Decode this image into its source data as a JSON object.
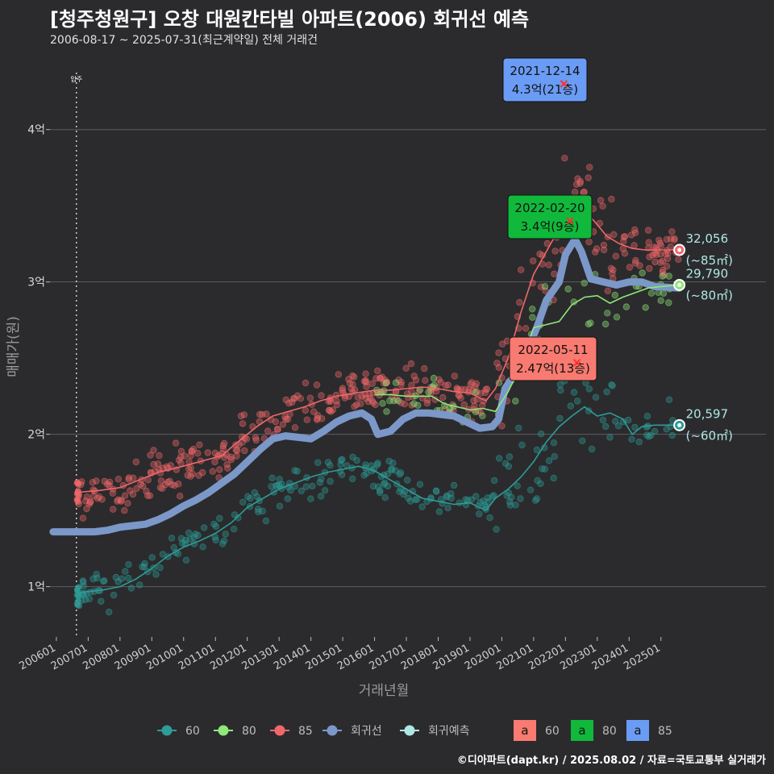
{
  "header": {
    "title": "[청주청원구] 오창 대원칸타빌 아파트(2006) 회귀선 예측",
    "subtitle": "2006-08-17 ~ 2025-07-31(최근계약일) 전체 거래건"
  },
  "footer": {
    "credit": "©디아파트(dapt.kr) / 2025.08.02 / 자료=국토교통부 실거래가"
  },
  "colors": {
    "s60": "#2e9c97",
    "s80": "#8fe87a",
    "s85": "#f0676a",
    "regression": "#7b98c9",
    "forecast": "#aee8e5",
    "label80_bg": "#10b93b",
    "label85_bg": "#6a9cf5",
    "label60_bg": "#f87a70",
    "background": "#2b2b2d",
    "grid": "#5d5d60"
  },
  "chart_data": {
    "type": "scatter",
    "xlabel": "거래년월",
    "ylabel": "매매가(원)",
    "x_ticks": [
      "200601",
      "200701",
      "200801",
      "200901",
      "201001",
      "201101",
      "201201",
      "201301",
      "201401",
      "201501",
      "201601",
      "201701",
      "201801",
      "201901",
      "202001",
      "202101",
      "202201",
      "202301",
      "202401",
      "202501"
    ],
    "y_ticks": [
      {
        "value": 1,
        "label": "1억"
      },
      {
        "value": 2,
        "label": "2억"
      },
      {
        "value": 3,
        "label": "3억"
      },
      {
        "value": 4,
        "label": "4억"
      }
    ],
    "xlim": [
      2005.8,
      2028.3
    ],
    "ylim": [
      0.67,
      4.48
    ],
    "vline": {
      "x": 2006.63,
      "label": "입주"
    },
    "series": [
      {
        "name": "60",
        "color_key": "s60",
        "line": [
          [
            2006.7,
            0.96
          ],
          [
            2007.5,
            0.98
          ],
          [
            2008.0,
            1.0
          ],
          [
            2008.5,
            1.05
          ],
          [
            2009.0,
            1.12
          ],
          [
            2009.5,
            1.2
          ],
          [
            2010.0,
            1.26
          ],
          [
            2010.5,
            1.3
          ],
          [
            2011.0,
            1.35
          ],
          [
            2011.5,
            1.42
          ],
          [
            2012.0,
            1.52
          ],
          [
            2012.5,
            1.58
          ],
          [
            2013.0,
            1.64
          ],
          [
            2013.5,
            1.68
          ],
          [
            2014.0,
            1.72
          ],
          [
            2014.5,
            1.75
          ],
          [
            2015.0,
            1.77
          ],
          [
            2015.5,
            1.79
          ],
          [
            2016.0,
            1.76
          ],
          [
            2016.5,
            1.7
          ],
          [
            2017.0,
            1.64
          ],
          [
            2017.5,
            1.58
          ],
          [
            2018.0,
            1.56
          ],
          [
            2018.5,
            1.54
          ],
          [
            2019.0,
            1.55
          ],
          [
            2019.5,
            1.5
          ],
          [
            2019.8,
            1.58
          ],
          [
            2020.2,
            1.64
          ],
          [
            2020.6,
            1.72
          ],
          [
            2021.0,
            1.82
          ],
          [
            2021.4,
            1.95
          ],
          [
            2021.8,
            2.05
          ],
          [
            2022.2,
            2.12
          ],
          [
            2022.6,
            2.18
          ],
          [
            2023.0,
            2.12
          ],
          [
            2023.4,
            2.14
          ],
          [
            2023.8,
            2.1
          ],
          [
            2024.1,
            2.0
          ],
          [
            2024.4,
            2.05
          ],
          [
            2024.8,
            2.06
          ],
          [
            2025.58,
            2.06
          ]
        ]
      },
      {
        "name": "80",
        "color_key": "s80",
        "line": [
          [
            2016.0,
            2.26
          ],
          [
            2016.5,
            2.26
          ],
          [
            2017.0,
            2.25
          ],
          [
            2017.4,
            2.25
          ],
          [
            2017.8,
            2.25
          ],
          [
            2018.2,
            2.2
          ],
          [
            2018.6,
            2.18
          ],
          [
            2019.0,
            2.16
          ],
          [
            2019.4,
            2.17
          ],
          [
            2019.8,
            2.15
          ],
          [
            2020.2,
            2.28
          ],
          [
            2020.6,
            2.45
          ],
          [
            2021.0,
            2.7
          ],
          [
            2021.4,
            2.72
          ],
          [
            2021.8,
            2.74
          ],
          [
            2022.2,
            2.85
          ],
          [
            2022.6,
            2.9
          ],
          [
            2023.0,
            2.91
          ],
          [
            2023.4,
            2.86
          ],
          [
            2023.8,
            2.9
          ],
          [
            2024.2,
            2.93
          ],
          [
            2024.6,
            2.96
          ],
          [
            2025.0,
            2.97
          ],
          [
            2025.58,
            2.98
          ]
        ]
      },
      {
        "name": "85",
        "color_key": "s85",
        "line": [
          [
            2006.7,
            1.62
          ],
          [
            2007.3,
            1.63
          ],
          [
            2008.0,
            1.65
          ],
          [
            2008.6,
            1.7
          ],
          [
            2009.2,
            1.75
          ],
          [
            2009.8,
            1.78
          ],
          [
            2010.5,
            1.82
          ],
          [
            2011.2,
            1.86
          ],
          [
            2011.7,
            1.95
          ],
          [
            2012.3,
            2.05
          ],
          [
            2012.8,
            2.12
          ],
          [
            2013.3,
            2.15
          ],
          [
            2013.8,
            2.18
          ],
          [
            2014.3,
            2.22
          ],
          [
            2014.8,
            2.25
          ],
          [
            2015.4,
            2.27
          ],
          [
            2016.0,
            2.29
          ],
          [
            2016.5,
            2.29
          ],
          [
            2017.0,
            2.3
          ],
          [
            2017.5,
            2.31
          ],
          [
            2018.0,
            2.3
          ],
          [
            2018.5,
            2.28
          ],
          [
            2019.0,
            2.27
          ],
          [
            2019.5,
            2.22
          ],
          [
            2019.8,
            2.3
          ],
          [
            2020.2,
            2.5
          ],
          [
            2020.6,
            2.8
          ],
          [
            2021.0,
            3.05
          ],
          [
            2021.4,
            3.2
          ],
          [
            2021.8,
            3.35
          ],
          [
            2022.1,
            3.5
          ],
          [
            2022.5,
            3.48
          ],
          [
            2022.9,
            3.4
          ],
          [
            2023.3,
            3.3
          ],
          [
            2023.7,
            3.25
          ],
          [
            2024.1,
            3.22
          ],
          [
            2024.5,
            3.21
          ],
          [
            2025.0,
            3.21
          ],
          [
            2025.58,
            3.21
          ]
        ]
      },
      {
        "name": "회귀선",
        "color_key": "regression",
        "line": [
          [
            2005.9,
            1.36
          ],
          [
            2006.3,
            1.36
          ],
          [
            2006.7,
            1.36
          ],
          [
            2007.2,
            1.36
          ],
          [
            2007.6,
            1.37
          ],
          [
            2008.0,
            1.39
          ],
          [
            2008.4,
            1.4
          ],
          [
            2008.8,
            1.41
          ],
          [
            2009.2,
            1.44
          ],
          [
            2009.6,
            1.48
          ],
          [
            2010.0,
            1.53
          ],
          [
            2010.4,
            1.57
          ],
          [
            2010.8,
            1.62
          ],
          [
            2011.2,
            1.68
          ],
          [
            2011.6,
            1.74
          ],
          [
            2012.0,
            1.82
          ],
          [
            2012.4,
            1.9
          ],
          [
            2012.8,
            1.97
          ],
          [
            2013.2,
            1.99
          ],
          [
            2013.6,
            1.98
          ],
          [
            2014.0,
            1.97
          ],
          [
            2014.4,
            2.02
          ],
          [
            2014.8,
            2.08
          ],
          [
            2015.2,
            2.12
          ],
          [
            2015.6,
            2.14
          ],
          [
            2015.9,
            2.1
          ],
          [
            2016.1,
            2.0
          ],
          [
            2016.5,
            2.02
          ],
          [
            2016.9,
            2.1
          ],
          [
            2017.3,
            2.14
          ],
          [
            2017.7,
            2.14
          ],
          [
            2018.1,
            2.13
          ],
          [
            2018.5,
            2.12
          ],
          [
            2018.9,
            2.08
          ],
          [
            2019.3,
            2.04
          ],
          [
            2019.7,
            2.05
          ],
          [
            2019.9,
            2.1
          ],
          [
            2020.1,
            2.3
          ],
          [
            2020.5,
            2.42
          ],
          [
            2020.8,
            2.55
          ],
          [
            2021.1,
            2.7
          ],
          [
            2021.4,
            2.88
          ],
          [
            2021.8,
            3.0
          ],
          [
            2022.0,
            3.18
          ],
          [
            2022.3,
            3.28
          ],
          [
            2022.5,
            3.2
          ],
          [
            2022.8,
            3.02
          ],
          [
            2023.2,
            3.0
          ],
          [
            2023.6,
            2.98
          ],
          [
            2024.0,
            3.0
          ],
          [
            2024.4,
            3.0
          ],
          [
            2024.8,
            2.97
          ],
          [
            2025.58,
            2.96
          ]
        ]
      }
    ],
    "end_points": [
      {
        "series": "85",
        "x": 2025.58,
        "y": 3.21,
        "value": "32,056",
        "area": "(~85㎡)"
      },
      {
        "series": "80",
        "x": 2025.58,
        "y": 2.98,
        "value": "29,790",
        "area": "(~80㎡)"
      },
      {
        "series": "60",
        "x": 2025.58,
        "y": 2.06,
        "value": "20,597",
        "area": "(~60㎡)"
      }
    ],
    "max_labels": [
      {
        "series": "85",
        "date": "2021-12-14",
        "price": "4.3억(21층)",
        "x": 2021.95,
        "y": 4.3
      },
      {
        "series": "80",
        "date": "2022-02-20",
        "price": "3.4억(9층)",
        "x": 2022.14,
        "y": 3.4
      },
      {
        "series": "60",
        "date": "2022-05-11",
        "price": "2.47억(13층)",
        "x": 2022.36,
        "y": 2.47
      }
    ],
    "legend": {
      "position": "bottom",
      "series": [
        "60",
        "80",
        "85",
        "회귀선",
        "회귀예측"
      ],
      "labels": [
        "60",
        "80",
        "85"
      ]
    }
  }
}
